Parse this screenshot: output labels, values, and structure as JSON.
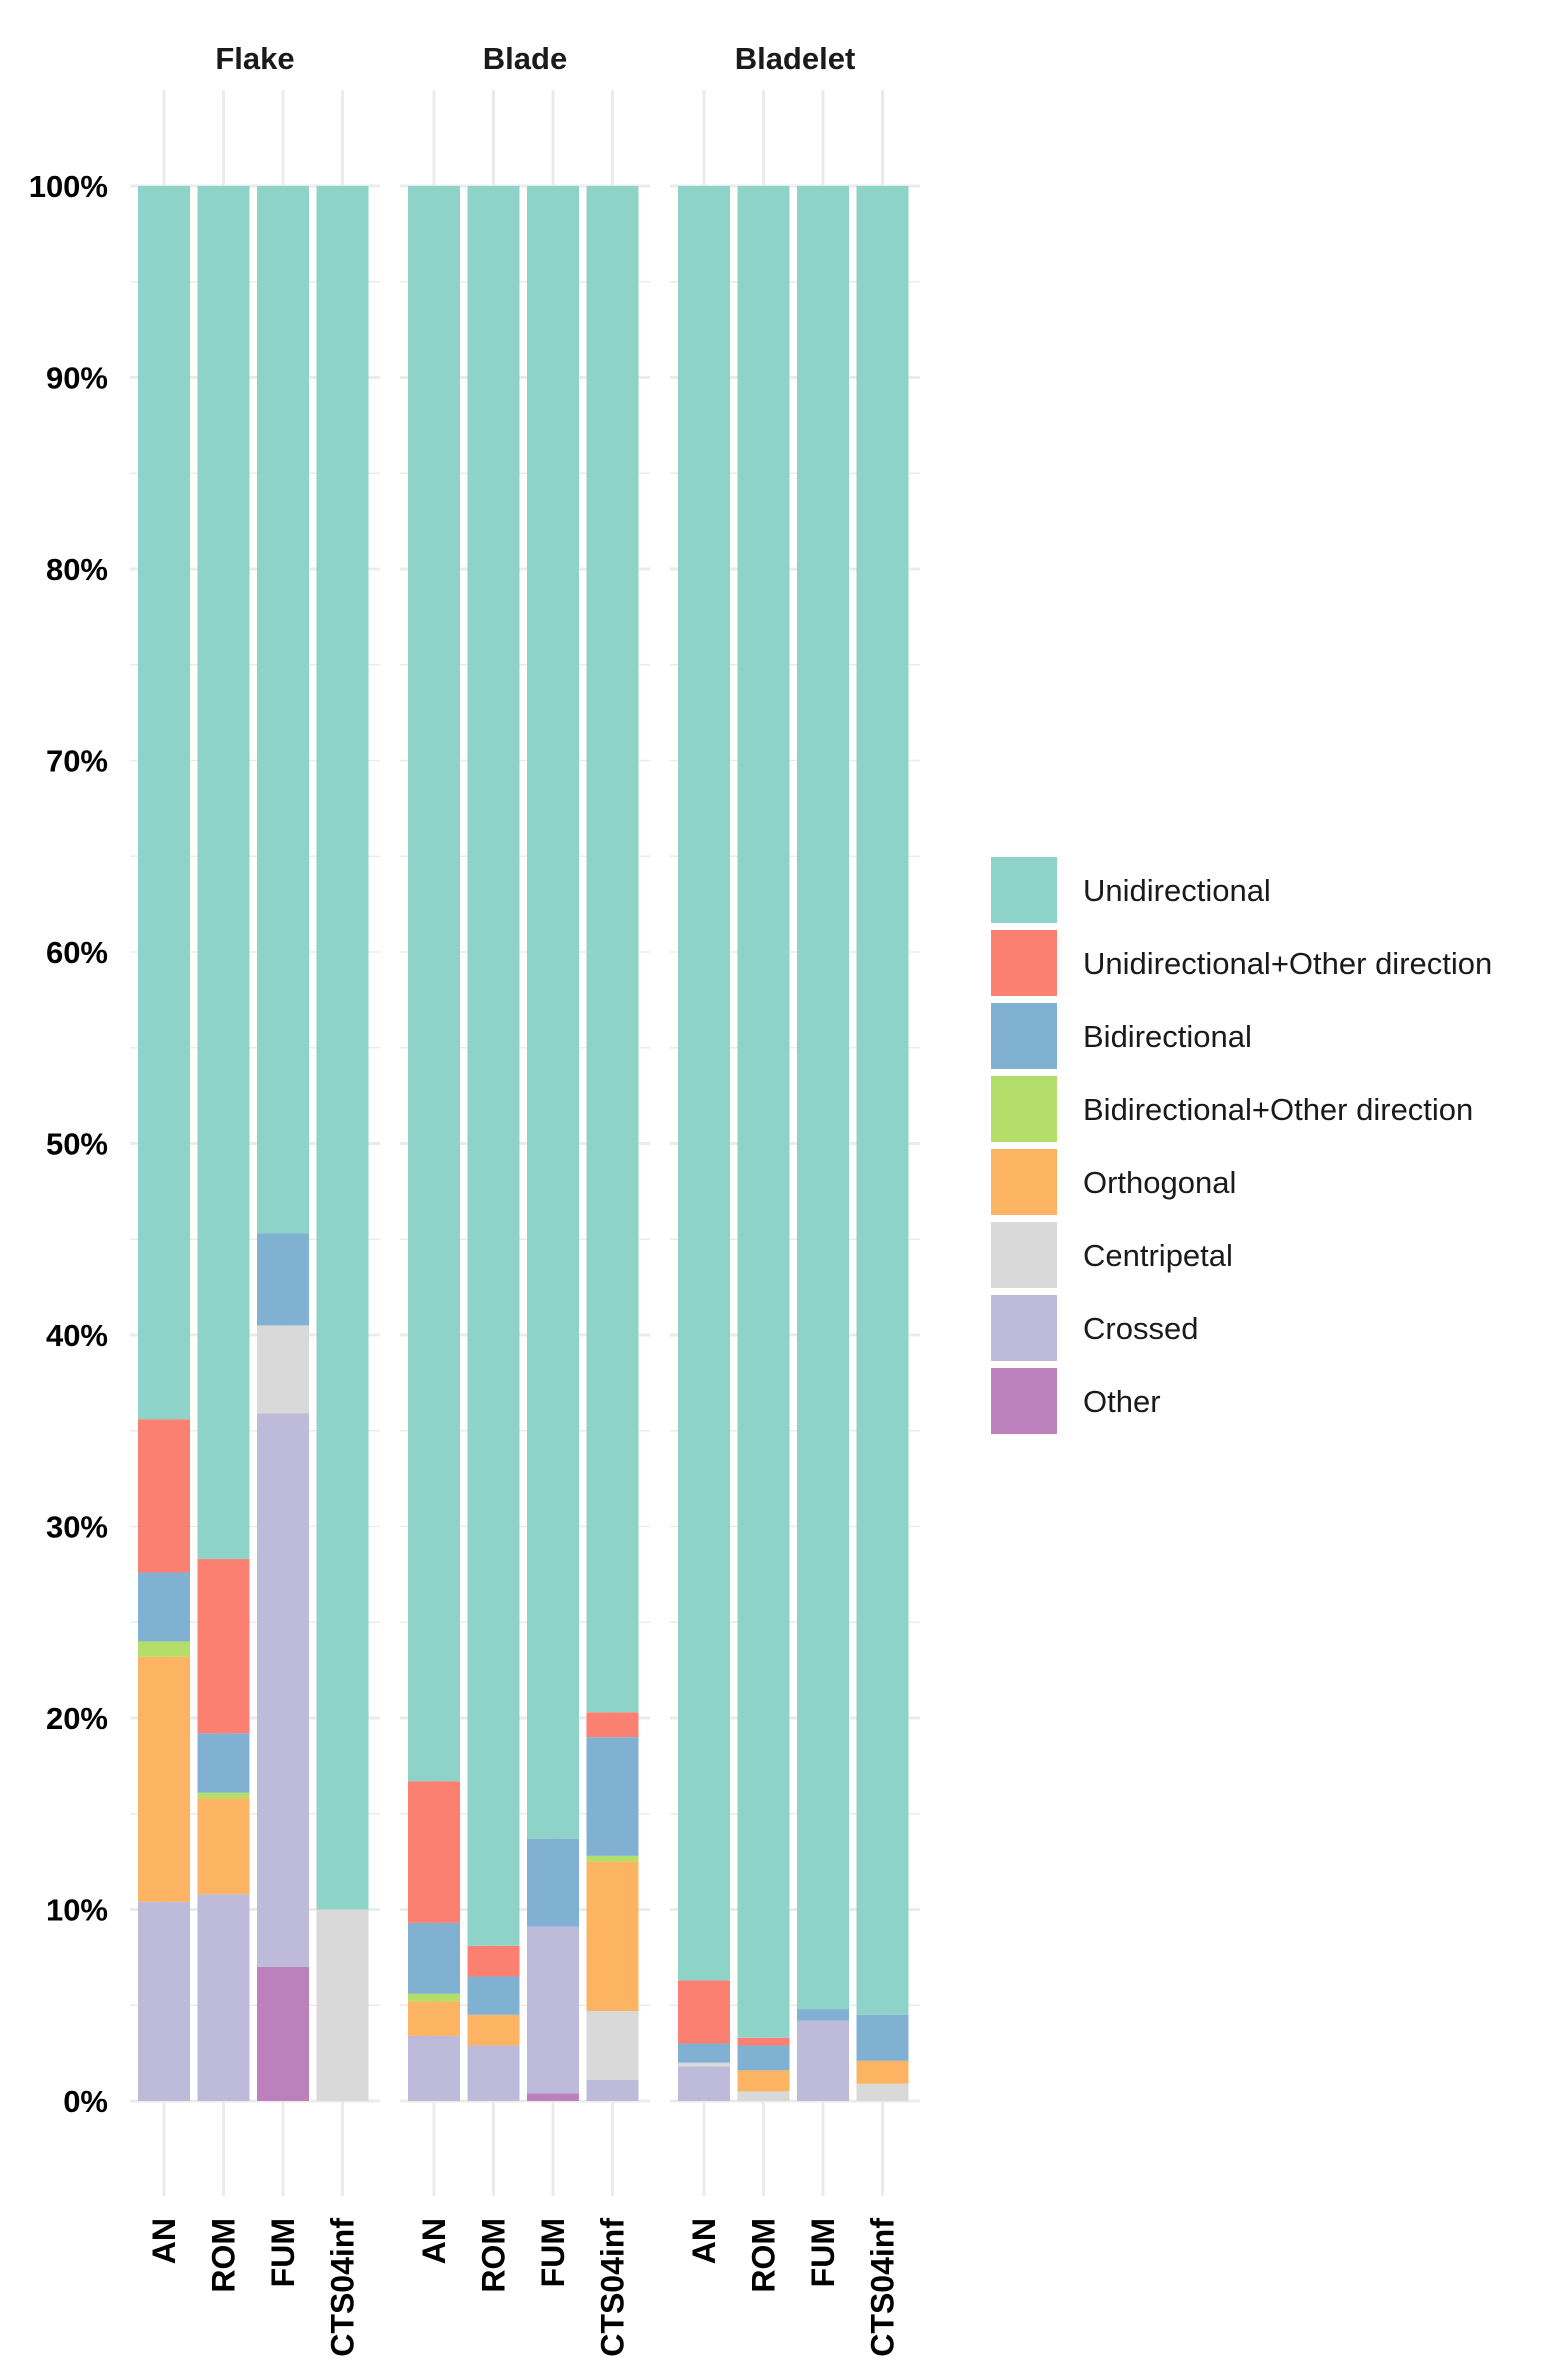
{
  "chart_data": {
    "type": "bar",
    "stacked": true,
    "normalized": true,
    "title": "",
    "xlabel": "",
    "ylabel": "",
    "ylim": [
      0,
      1
    ],
    "yticks": [
      0,
      0.1,
      0.2,
      0.3,
      0.4,
      0.5,
      0.6,
      0.7,
      0.8,
      0.9,
      1.0
    ],
    "ytick_labels": [
      "0%",
      "10%",
      "20%",
      "30%",
      "40%",
      "50%",
      "60%",
      "70%",
      "80%",
      "90%",
      "100%"
    ],
    "grid": true,
    "legend_position": "right",
    "categories": [
      "AN",
      "ROM",
      "FUM",
      "CTS04inf"
    ],
    "legend": [
      {
        "name": "Unidirectional",
        "color": "#8DD3C7"
      },
      {
        "name": "Unidirectional+Other direction",
        "color": "#FB8072"
      },
      {
        "name": "Bidirectional",
        "color": "#80B1D3"
      },
      {
        "name": "Bidirectional+Other direction",
        "color": "#B3DE69"
      },
      {
        "name": "Orthogonal",
        "color": "#FDB462"
      },
      {
        "name": "Centripetal",
        "color": "#D9D9D9"
      },
      {
        "name": "Crossed",
        "color": "#BEBADA"
      },
      {
        "name": "Other",
        "color": "#BC80BD"
      }
    ],
    "stack_order_bottom_to_top": [
      "Other",
      "Crossed",
      "Centripetal",
      "Orthogonal",
      "Bidirectional+Other direction",
      "Bidirectional",
      "Unidirectional+Other direction",
      "Unidirectional"
    ],
    "facets": [
      {
        "name": "Flake",
        "bars": [
          {
            "category": "AN",
            "values": {
              "Other": 0.0,
              "Crossed": 0.104,
              "Centripetal": 0.0,
              "Orthogonal": 0.128,
              "Bidirectional+Other direction": 0.008,
              "Bidirectional": 0.036,
              "Unidirectional+Other direction": 0.08,
              "Unidirectional": 0.644
            }
          },
          {
            "category": "ROM",
            "values": {
              "Other": 0.0,
              "Crossed": 0.108,
              "Centripetal": 0.0,
              "Orthogonal": 0.05,
              "Bidirectional+Other direction": 0.003,
              "Bidirectional": 0.031,
              "Unidirectional+Other direction": 0.091,
              "Unidirectional": 0.717
            }
          },
          {
            "category": "FUM",
            "values": {
              "Other": 0.07,
              "Crossed": 0.289,
              "Centripetal": 0.046,
              "Orthogonal": 0.0,
              "Bidirectional+Other direction": 0.0,
              "Bidirectional": 0.048,
              "Unidirectional+Other direction": 0.0,
              "Unidirectional": 0.547
            }
          },
          {
            "category": "CTS04inf",
            "values": {
              "Other": 0.0,
              "Crossed": 0.0,
              "Centripetal": 0.1,
              "Orthogonal": 0.0,
              "Bidirectional+Other direction": 0.0,
              "Bidirectional": 0.0,
              "Unidirectional+Other direction": 0.0,
              "Unidirectional": 0.9
            }
          }
        ]
      },
      {
        "name": "Blade",
        "bars": [
          {
            "category": "AN",
            "values": {
              "Other": 0.0,
              "Crossed": 0.034,
              "Centripetal": 0.0,
              "Orthogonal": 0.018,
              "Bidirectional+Other direction": 0.004,
              "Bidirectional": 0.037,
              "Unidirectional+Other direction": 0.074,
              "Unidirectional": 0.833
            }
          },
          {
            "category": "ROM",
            "values": {
              "Other": 0.0,
              "Crossed": 0.029,
              "Centripetal": 0.0,
              "Orthogonal": 0.016,
              "Bidirectional+Other direction": 0.0,
              "Bidirectional": 0.02,
              "Unidirectional+Other direction": 0.016,
              "Unidirectional": 0.919
            }
          },
          {
            "category": "FUM",
            "values": {
              "Other": 0.004,
              "Crossed": 0.087,
              "Centripetal": 0.0,
              "Orthogonal": 0.0,
              "Bidirectional+Other direction": 0.0,
              "Bidirectional": 0.046,
              "Unidirectional+Other direction": 0.0,
              "Unidirectional": 0.863
            }
          },
          {
            "category": "CTS04inf",
            "values": {
              "Other": 0.0,
              "Crossed": 0.011,
              "Centripetal": 0.036,
              "Orthogonal": 0.078,
              "Bidirectional+Other direction": 0.003,
              "Bidirectional": 0.062,
              "Unidirectional+Other direction": 0.013,
              "Unidirectional": 0.797
            }
          }
        ]
      },
      {
        "name": "Bladelet",
        "bars": [
          {
            "category": "AN",
            "values": {
              "Other": 0.0,
              "Crossed": 0.018,
              "Centripetal": 0.002,
              "Orthogonal": 0.0,
              "Bidirectional+Other direction": 0.0,
              "Bidirectional": 0.01,
              "Unidirectional+Other direction": 0.033,
              "Unidirectional": 0.937
            }
          },
          {
            "category": "ROM",
            "values": {
              "Other": 0.0,
              "Crossed": 0.0,
              "Centripetal": 0.005,
              "Orthogonal": 0.011,
              "Bidirectional+Other direction": 0.0,
              "Bidirectional": 0.013,
              "Unidirectional+Other direction": 0.004,
              "Unidirectional": 0.967
            }
          },
          {
            "category": "FUM",
            "values": {
              "Other": 0.0,
              "Crossed": 0.042,
              "Centripetal": 0.0,
              "Orthogonal": 0.0,
              "Bidirectional+Other direction": 0.0,
              "Bidirectional": 0.006,
              "Unidirectional+Other direction": 0.0,
              "Unidirectional": 0.952
            }
          },
          {
            "category": "CTS04inf",
            "values": {
              "Other": 0.0,
              "Crossed": 0.0,
              "Centripetal": 0.009,
              "Orthogonal": 0.012,
              "Bidirectional+Other direction": 0.0,
              "Bidirectional": 0.024,
              "Unidirectional+Other direction": 0.0,
              "Unidirectional": 0.955
            }
          }
        ]
      }
    ]
  }
}
